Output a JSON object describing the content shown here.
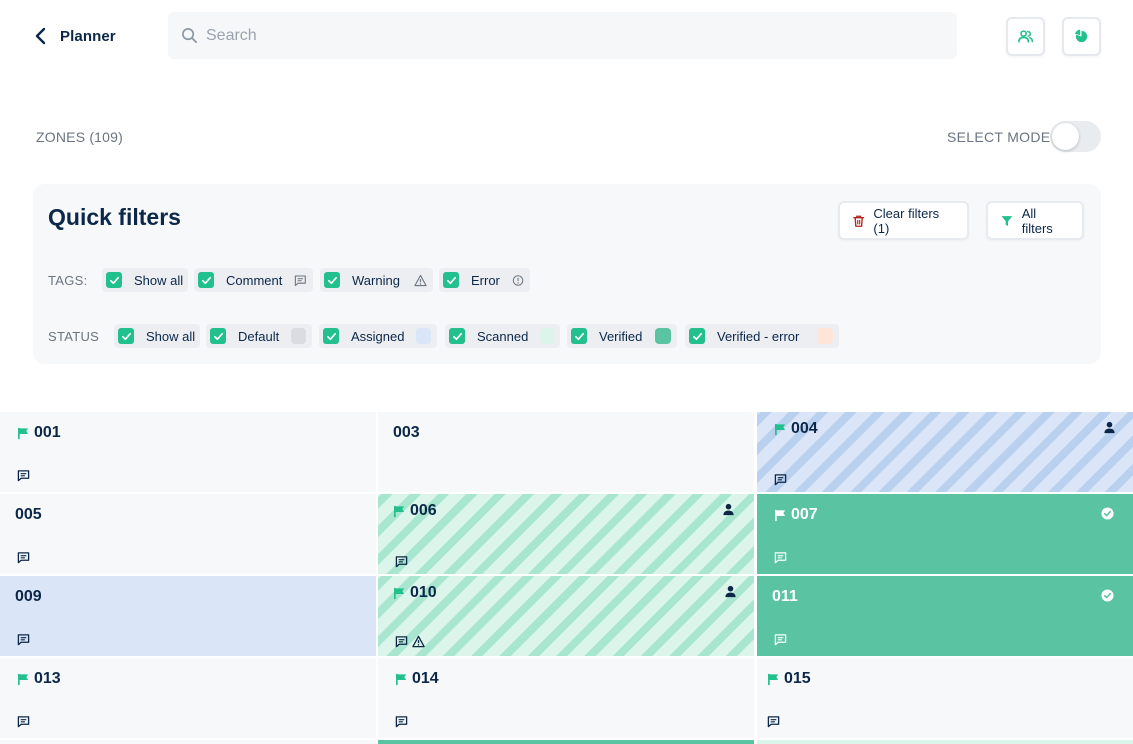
{
  "header": {
    "back_label": "Planner",
    "search_placeholder": "Search",
    "buttons": [
      {
        "icon": "users-icon"
      },
      {
        "icon": "pie-chart-icon"
      }
    ]
  },
  "zones": {
    "count_label": "ZONES (109)",
    "select_mode_label": "SELECT MODE",
    "select_mode_on": false
  },
  "quick_filters": {
    "title": "Quick filters",
    "clear_label": "Clear filters (1)",
    "all_filters_label": "All filters",
    "tags_label": "TAGS:",
    "status_label": "STATUS",
    "tags": [
      {
        "label": "Show all",
        "checked": true
      },
      {
        "label": "Comment",
        "checked": true,
        "icon": "comment-icon"
      },
      {
        "label": "Warning",
        "checked": true,
        "icon": "warning-icon"
      },
      {
        "label": "Error",
        "checked": true,
        "icon": "info-icon"
      }
    ],
    "statuses": [
      {
        "label": "Show all",
        "checked": true
      },
      {
        "label": "Default",
        "checked": true,
        "color": "#d9dde2"
      },
      {
        "label": "Assigned",
        "checked": true,
        "color": "#dae6f8"
      },
      {
        "label": "Scanned",
        "checked": true,
        "color": "#dcf5eb"
      },
      {
        "label": "Verified",
        "checked": true,
        "color": "#5ac4a2"
      },
      {
        "label": "Verified - error",
        "checked": true,
        "color": "#fde6d6"
      }
    ]
  },
  "colors": {
    "accent_green": "#22c08c",
    "verified": "#5ac4a2",
    "assigned": "#dae6f8",
    "scanned": "#dcf5eb",
    "navy": "#0c2748",
    "danger": "#b3261e"
  },
  "zone_cells": [
    {
      "id": "001",
      "flag": true,
      "status": "default",
      "icons": [
        "comment-icon"
      ]
    },
    {
      "id": "003",
      "flag": false,
      "status": "default",
      "icons": []
    },
    {
      "id": "004",
      "flag": true,
      "status": "assigned-striped",
      "icons": [
        "comment-icon"
      ],
      "right_icon": "person-icon"
    },
    {
      "id": "005",
      "flag": false,
      "status": "default",
      "icons": [
        "comment-icon"
      ]
    },
    {
      "id": "006",
      "flag": true,
      "status": "scanned-striped",
      "icons": [
        "comment-icon"
      ],
      "right_icon": "person-icon"
    },
    {
      "id": "007",
      "flag": true,
      "status": "verified",
      "icons": [
        "comment-icon"
      ],
      "right_icon": "check-circle-icon"
    },
    {
      "id": "009",
      "flag": false,
      "status": "assigned",
      "icons": [
        "comment-icon"
      ]
    },
    {
      "id": "010",
      "flag": true,
      "status": "scanned-striped",
      "icons": [
        "comment-icon",
        "warning-icon"
      ],
      "right_icon": "person-icon"
    },
    {
      "id": "011",
      "flag": false,
      "status": "verified",
      "icons": [
        "comment-icon"
      ],
      "right_icon": "check-circle-icon"
    },
    {
      "id": "013",
      "flag": true,
      "status": "default",
      "icons": [
        "comment-icon"
      ]
    },
    {
      "id": "014",
      "flag": true,
      "status": "default",
      "icons": [
        "comment-icon"
      ]
    },
    {
      "id": "015",
      "flag": true,
      "status": "default",
      "icons": [
        "comment-icon"
      ]
    }
  ]
}
